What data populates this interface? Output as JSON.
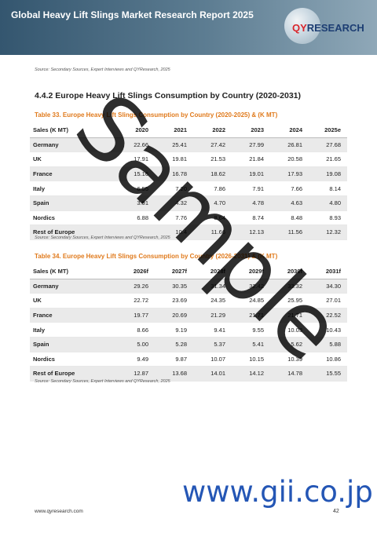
{
  "header": {
    "title": "Global Heavy Lift Slings Market Research Report 2025",
    "logo_qy": "QY",
    "logo_rest": "RESEARCH"
  },
  "source_top": "Source: Secondary Sources, Expert Interviews and QYResearch, 2025",
  "section": {
    "title": "4.4.2  Europe Heavy Lift Slings Consumption by Country (2020-2031)"
  },
  "table33": {
    "caption": "Table 33.   Europe Heavy Lift Slings Consumption by Country (2020-2025) & (K MT)",
    "headers": [
      "Sales (K MT)",
      "2020",
      "2021",
      "2022",
      "2023",
      "2024",
      "2025e"
    ],
    "rows": [
      [
        "Germany",
        "22.66",
        "25.41",
        "27.42",
        "27.99",
        "26.81",
        "27.68"
      ],
      [
        "UK",
        "17.91",
        "19.81",
        "21.53",
        "21.84",
        "20.58",
        "21.65"
      ],
      [
        "France",
        "15.16",
        "16.78",
        "18.62",
        "19.01",
        "17.93",
        "19.08"
      ],
      [
        "Italy",
        "6.55",
        "7.20",
        "7.86",
        "7.91",
        "7.66",
        "8.14"
      ],
      [
        "Spain",
        "3.91",
        "4.32",
        "4.70",
        "4.78",
        "4.63",
        "4.80"
      ],
      [
        "Nordics",
        "6.88",
        "7.76",
        "8.64",
        "8.74",
        "8.48",
        "8.93"
      ],
      [
        "Rest of Europe",
        "",
        "10.4",
        "11.66",
        "12.13",
        "11.56",
        "12.32"
      ]
    ],
    "source": "Source: Secondary Sources, Expert Interviews and QYResearch, 2025"
  },
  "table34": {
    "caption": "Table 34.   Europe Heavy Lift Slings Consumption by Country (2026-2031) & (K MT)",
    "headers": [
      "Sales (K MT)",
      "2026f",
      "2027f",
      "2028f",
      "2029f",
      "2030f",
      "2031f"
    ],
    "rows": [
      [
        "Germany",
        "29.26",
        "30.35",
        "31.34",
        "32.42",
        "33.32",
        "34.30"
      ],
      [
        "UK",
        "22.72",
        "23.69",
        "24.35",
        "24.85",
        "25.95",
        "27.01"
      ],
      [
        "France",
        "19.77",
        "20.69",
        "21.29",
        "21.71",
        "21.71",
        "22.52"
      ],
      [
        "Italy",
        "8.66",
        "9.19",
        "9.41",
        "9.55",
        "10.03",
        "10.43"
      ],
      [
        "Spain",
        "5.00",
        "5.28",
        "5.37",
        "5.41",
        "5.62",
        "5.88"
      ],
      [
        "Nordics",
        "9.49",
        "9.87",
        "10.07",
        "10.15",
        "10.39",
        "10.86"
      ],
      [
        "Rest of Europe",
        "12.87",
        "13.68",
        "14.01",
        "14.12",
        "14.78",
        "15.55"
      ]
    ],
    "source": "Source: Secondary Sources, Expert Interviews and QYResearch, 2025"
  },
  "watermark": "Sample",
  "footer": {
    "url": "www.qyresearch.com",
    "gii": "www.gii.co.jp",
    "page": "42"
  }
}
